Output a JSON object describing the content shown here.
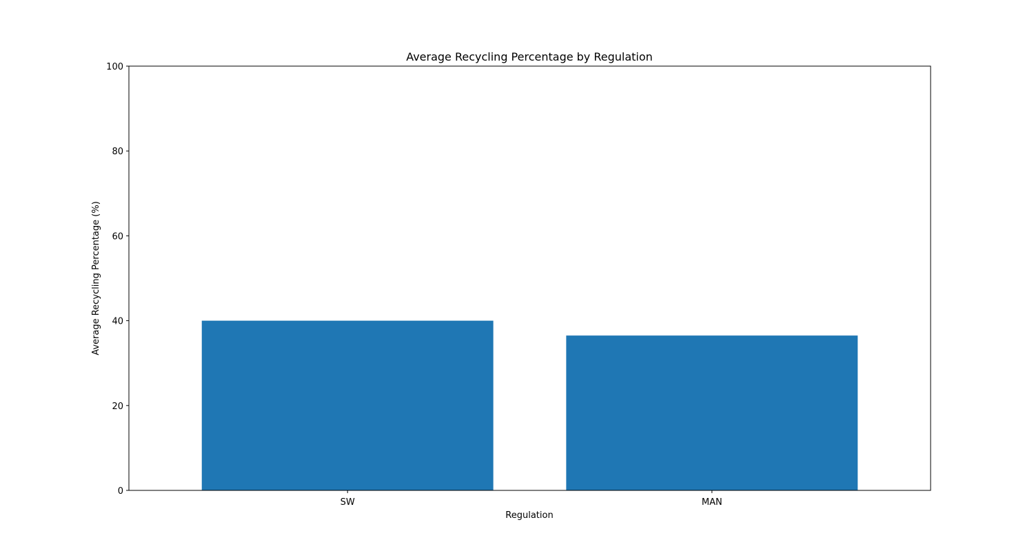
{
  "chart_data": {
    "type": "bar",
    "title": "Average Recycling Percentage by Regulation",
    "xlabel": "Regulation",
    "ylabel": "Average Recycling Percentage (%)",
    "categories": [
      "SW",
      "MAN"
    ],
    "values": [
      40.0,
      36.5
    ],
    "ylim": [
      0,
      100
    ],
    "yticks": [
      0,
      20,
      40,
      60,
      80,
      100
    ],
    "grid": false,
    "bar_color": "#1f77b4"
  }
}
